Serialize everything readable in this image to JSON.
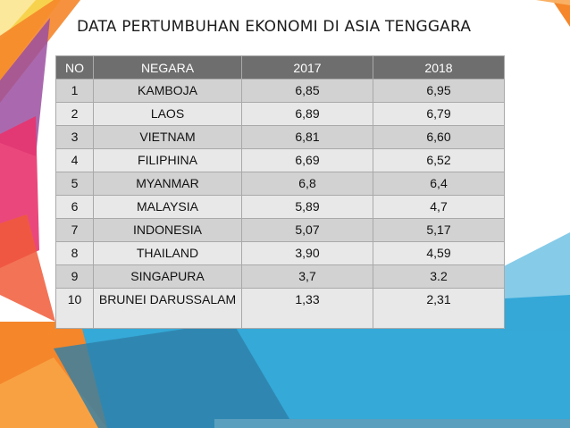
{
  "title": "DATA PERTUMBUHAN EKONOMI DI ASIA TENGGARA",
  "colors": {
    "header_bg": "#6e6e6e",
    "row_odd": "#d2d2d2",
    "row_even": "#e8e8e8",
    "accent_blue": "#35a9d8",
    "accent_orange": "#f5862a",
    "accent_yellow": "#f7d34d",
    "accent_pink": "#e8346e"
  },
  "table": {
    "headers": [
      "NO",
      "NEGARA",
      "2017",
      "2018"
    ],
    "rows": [
      [
        "1",
        "KAMBOJA",
        "6,85",
        "6,95"
      ],
      [
        "2",
        "LAOS",
        "6,89",
        "6,79"
      ],
      [
        "3",
        "VIETNAM",
        "6,81",
        "6,60"
      ],
      [
        "4",
        "FILIPHINA",
        "6,69",
        "6,52"
      ],
      [
        "5",
        "MYANMAR",
        "6,8",
        "6,4"
      ],
      [
        "6",
        "MALAYSIA",
        "5,89",
        "4,7"
      ],
      [
        "7",
        "INDONESIA",
        "5,07",
        "5,17"
      ],
      [
        "8",
        "THAILAND",
        "3,90",
        "4,59"
      ],
      [
        "9",
        "SINGAPURA",
        "3,7",
        "3.2"
      ],
      [
        "10",
        "BRUNEI DARUSSALAM",
        "1,33",
        "2,31"
      ]
    ]
  }
}
